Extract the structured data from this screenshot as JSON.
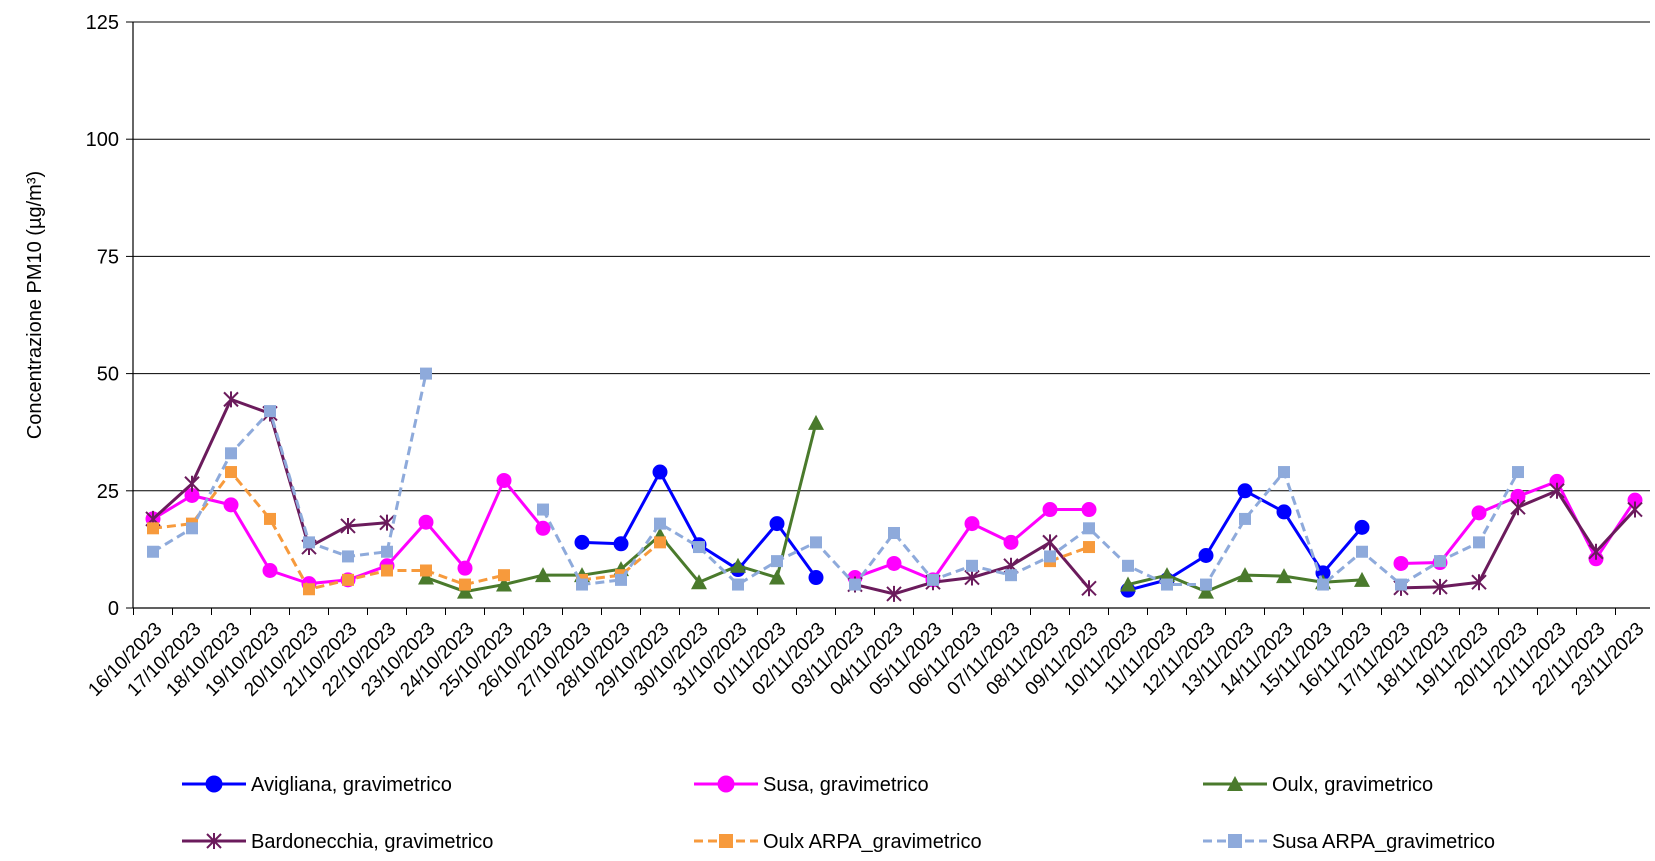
{
  "chart_data": {
    "type": "line",
    "title": "",
    "xlabel": "",
    "ylabel": "Concentrazione PM10 (µg/m³)",
    "ylim": [
      0,
      125
    ],
    "yticks": [
      0,
      25,
      50,
      75,
      100,
      125
    ],
    "grid": "horizontal",
    "legend_position": "bottom",
    "categories": [
      "16/10/2023",
      "17/10/2023",
      "18/10/2023",
      "19/10/2023",
      "20/10/2023",
      "21/10/2023",
      "22/10/2023",
      "23/10/2023",
      "24/10/2023",
      "25/10/2023",
      "26/10/2023",
      "27/10/2023",
      "28/10/2023",
      "29/10/2023",
      "30/10/2023",
      "31/10/2023",
      "01/11/2023",
      "02/11/2023",
      "03/11/2023",
      "04/11/2023",
      "05/11/2023",
      "06/11/2023",
      "07/11/2023",
      "08/11/2023",
      "09/11/2023",
      "10/11/2023",
      "11/11/2023",
      "12/11/2023",
      "13/11/2023",
      "14/11/2023",
      "15/11/2023",
      "16/11/2023",
      "17/11/2023",
      "18/11/2023",
      "19/11/2023",
      "20/11/2023",
      "21/11/2023",
      "22/11/2023",
      "23/11/2023"
    ],
    "series": [
      {
        "name": "Avigliana, gravimetrico",
        "color": "#0000ff",
        "marker": "circle",
        "dash": "solid",
        "values": [
          null,
          null,
          null,
          null,
          null,
          null,
          null,
          null,
          null,
          null,
          null,
          14,
          13.7,
          29,
          13.5,
          8.2,
          18,
          6.5,
          null,
          null,
          null,
          null,
          null,
          null,
          null,
          3.8,
          6,
          11.2,
          25,
          20.5,
          7.5,
          17.2,
          null,
          null,
          null,
          null,
          null,
          null,
          null
        ]
      },
      {
        "name": "Susa, gravimetrico",
        "color": "#ff00ff",
        "marker": "circle",
        "dash": "solid",
        "values": [
          19,
          24,
          22,
          8,
          5.2,
          6,
          9,
          18.3,
          8.5,
          27.2,
          17,
          null,
          null,
          null,
          null,
          null,
          null,
          null,
          6.5,
          9.5,
          6,
          18,
          14,
          21,
          21,
          null,
          null,
          null,
          null,
          null,
          null,
          null,
          9.5,
          9.7,
          20.3,
          23.8,
          27,
          10.5,
          23
        ]
      },
      {
        "name": "Oulx, gravimetrico",
        "color": "#4a7a2c",
        "marker": "triangle",
        "dash": "solid",
        "values": [
          null,
          null,
          null,
          null,
          null,
          null,
          null,
          6.5,
          3.5,
          5,
          7,
          7,
          8.3,
          15.5,
          5.5,
          9,
          6.5,
          39.5,
          null,
          null,
          null,
          null,
          null,
          null,
          null,
          5,
          7,
          3.5,
          7,
          6.8,
          5.5,
          6,
          null,
          null,
          null,
          null,
          null,
          null,
          null
        ]
      },
      {
        "name": "Bardonecchia,  gravimetrico",
        "color": "#6b1b5c",
        "marker": "star",
        "dash": "solid",
        "values": [
          19,
          26.5,
          44.5,
          41.5,
          13,
          17.5,
          18.2,
          null,
          null,
          null,
          null,
          null,
          null,
          null,
          null,
          null,
          null,
          null,
          5,
          3,
          5.5,
          6.5,
          9,
          14,
          4.2,
          null,
          null,
          null,
          null,
          null,
          null,
          null,
          4.3,
          4.5,
          5.5,
          21.5,
          25,
          12,
          21
        ]
      },
      {
        "name": "Oulx ARPA_gravimetrico",
        "color": "#f79a3c",
        "marker": "square",
        "dash": "dashed",
        "values": [
          17,
          18,
          29,
          19,
          4,
          6,
          8,
          8,
          5,
          7,
          null,
          6,
          7,
          14,
          null,
          null,
          null,
          null,
          null,
          null,
          null,
          null,
          null,
          10,
          13,
          null,
          null,
          null,
          null,
          null,
          null,
          null,
          null,
          null,
          null,
          null,
          null,
          null,
          null
        ]
      },
      {
        "name": "Susa ARPA_gravimetrico",
        "color": "#8eaadb",
        "marker": "square",
        "dash": "dashed",
        "values": [
          12,
          17,
          33,
          42,
          14,
          11,
          12,
          50,
          null,
          null,
          21,
          5,
          6,
          18,
          13,
          5,
          10,
          14,
          5,
          16,
          6,
          9,
          7,
          11,
          17,
          9,
          5,
          5,
          19,
          29,
          5,
          12,
          5,
          10,
          14,
          29,
          null,
          null,
          null
        ]
      }
    ]
  }
}
